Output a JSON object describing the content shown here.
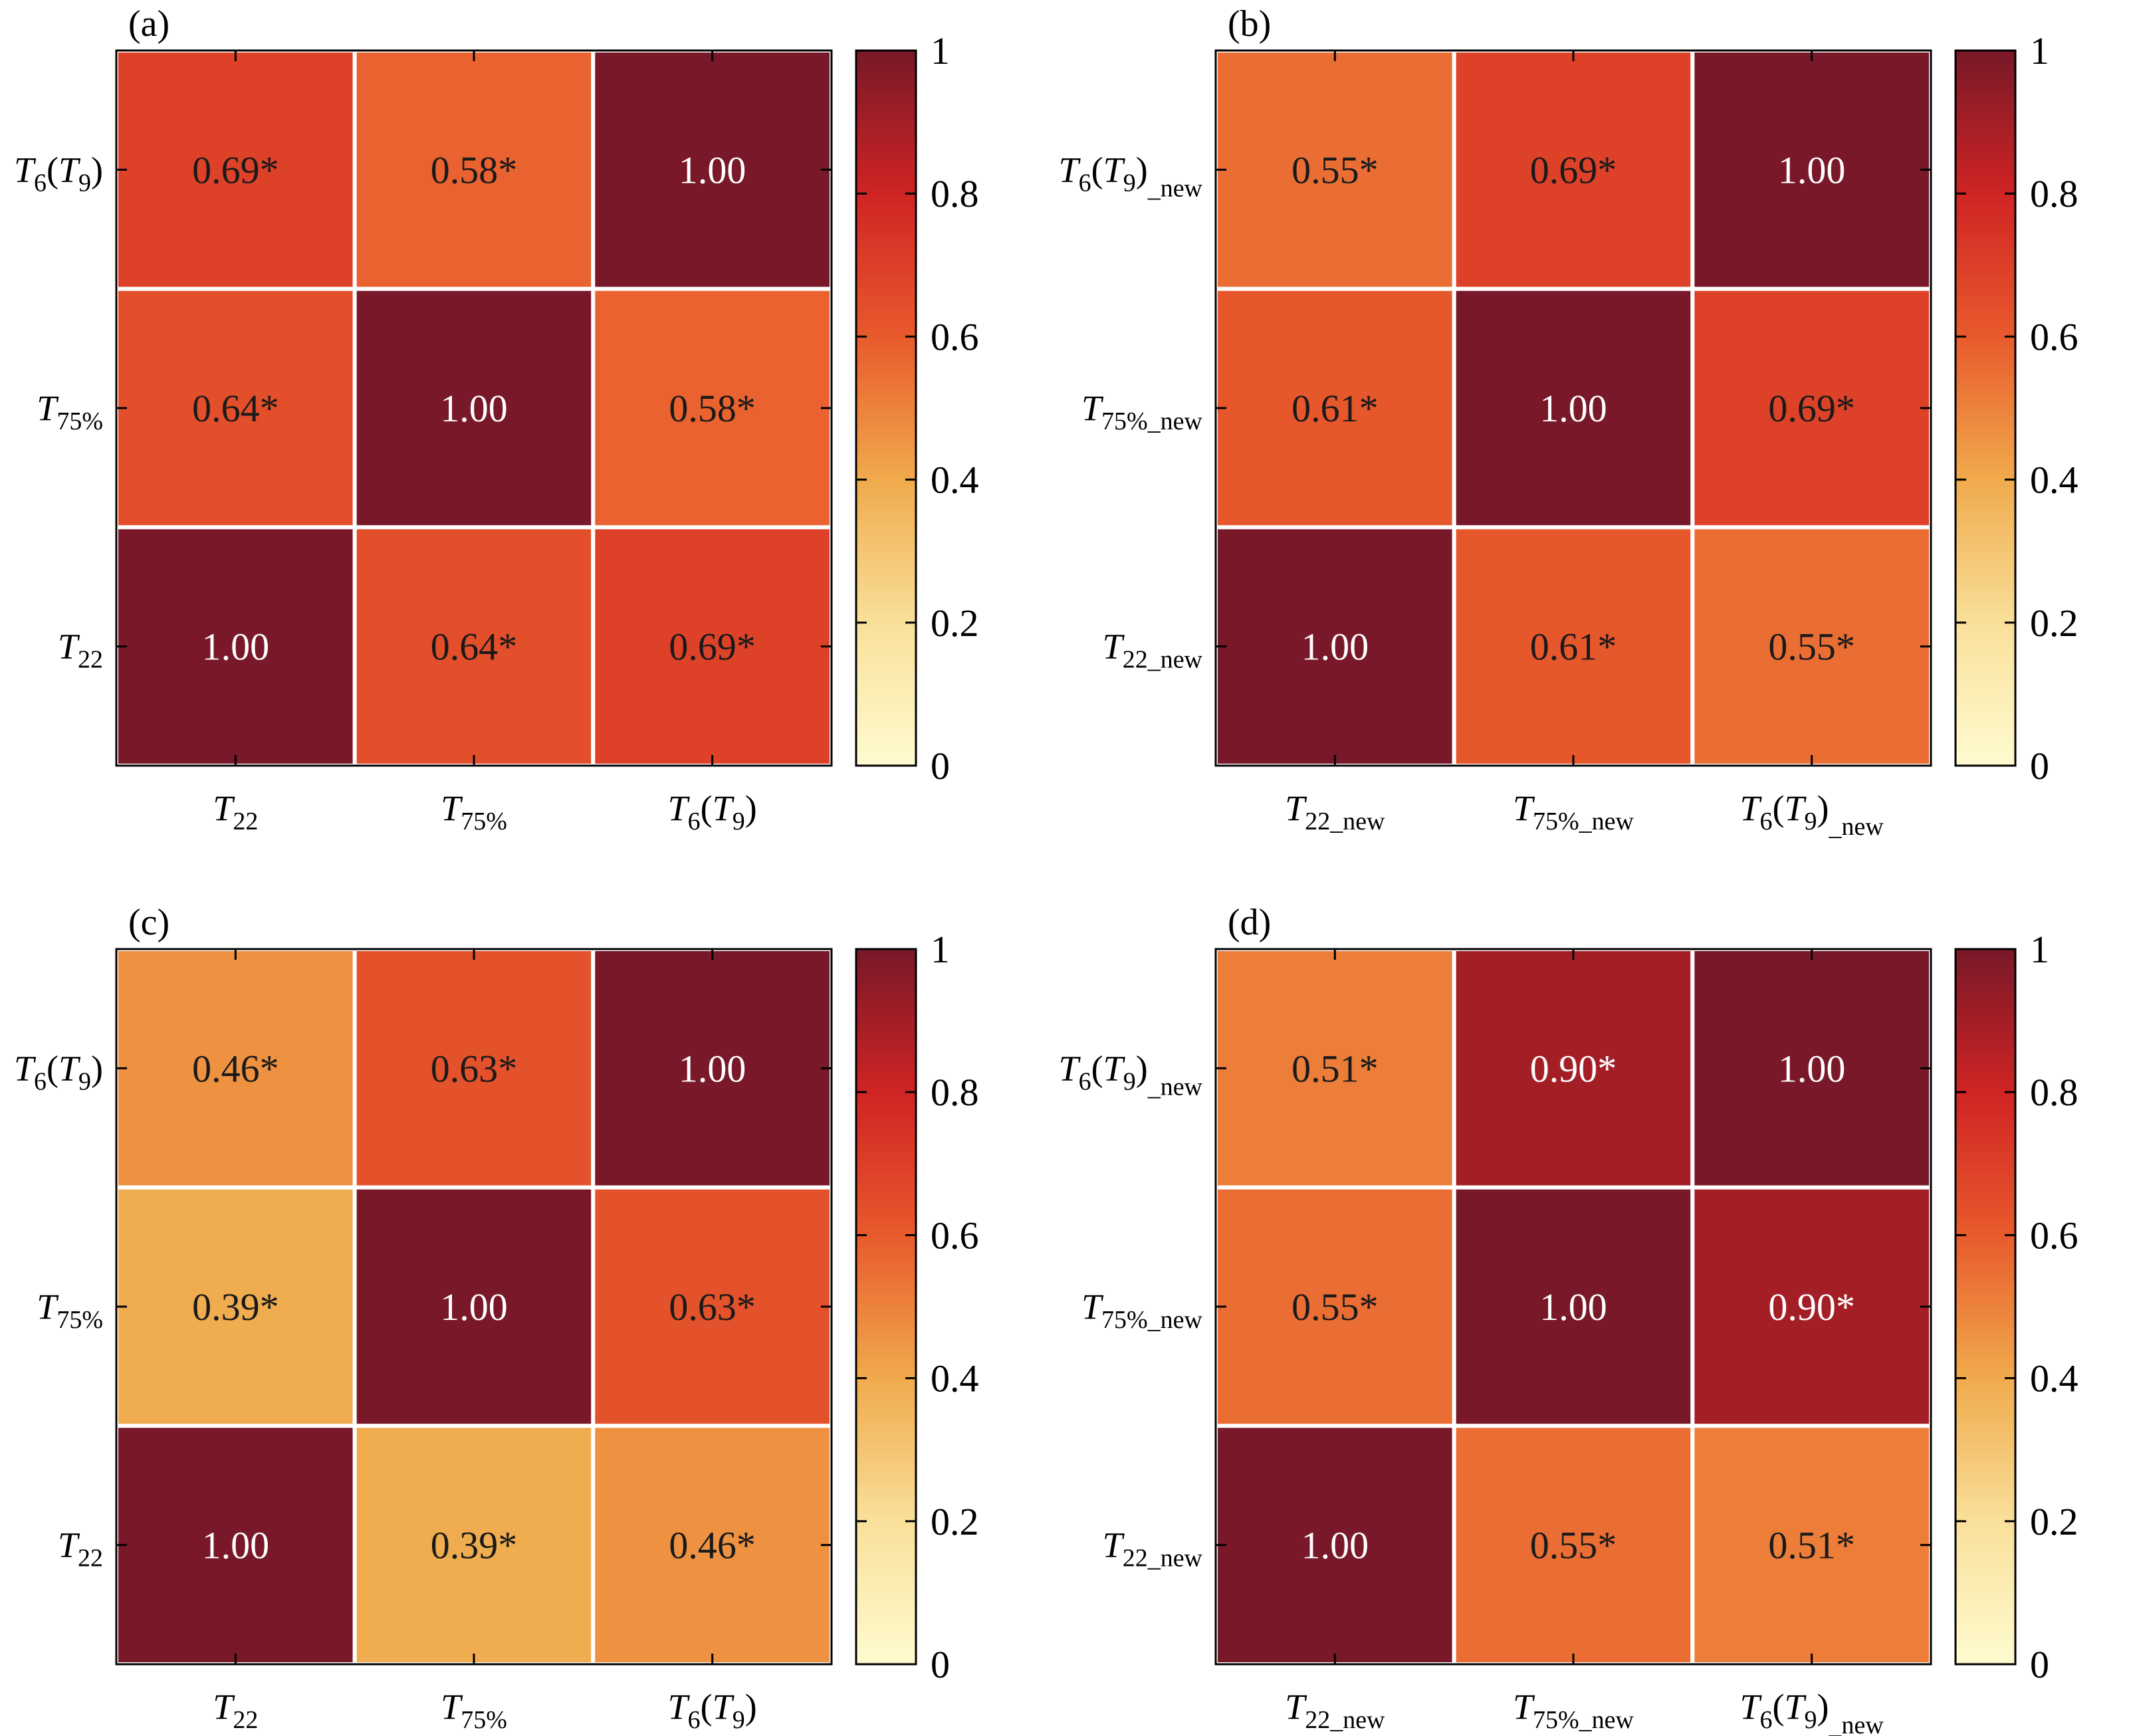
{
  "colorscale": {
    "stops": [
      [
        0.0,
        "#fffbd0"
      ],
      [
        0.2,
        "#f9e09a"
      ],
      [
        0.4,
        "#f0aa4c"
      ],
      [
        0.6,
        "#e85a2c"
      ],
      [
        0.8,
        "#cf2424"
      ],
      [
        1.0,
        "#781828"
      ]
    ],
    "light_text": "#ffffff",
    "dark_text": "#1a1a1a"
  },
  "chart_data": [
    {
      "type": "heatmap",
      "panel_label": "(a)",
      "x_labels": [
        {
          "main": "T",
          "sub": "22",
          "tail": ""
        },
        {
          "main": "T",
          "sub": "75%",
          "tail": ""
        },
        {
          "main": "T",
          "sub": "6",
          "tail": "(T9)"
        }
      ],
      "y_labels": [
        {
          "main": "T",
          "sub": "6",
          "tail": "(T9)"
        },
        {
          "main": "T",
          "sub": "75%",
          "tail": ""
        },
        {
          "main": "T",
          "sub": "22",
          "tail": ""
        }
      ],
      "values": [
        [
          0.69,
          0.58,
          1.0
        ],
        [
          0.64,
          1.0,
          0.58
        ],
        [
          1.0,
          0.64,
          0.69
        ]
      ],
      "cell_text": [
        [
          "0.69*",
          "0.58*",
          "1.00"
        ],
        [
          "0.64*",
          "1.00",
          "0.58*"
        ],
        [
          "1.00",
          "0.64*",
          "0.69*"
        ]
      ],
      "colorbar": {
        "range": [
          0,
          1
        ],
        "ticks": [
          "0",
          "0.2",
          "0.4",
          "0.6",
          "0.8",
          "1"
        ]
      }
    },
    {
      "type": "heatmap",
      "panel_label": "(b)",
      "x_labels": [
        {
          "main": "T",
          "sub": "22_new",
          "tail": ""
        },
        {
          "main": "T",
          "sub": "75%_new",
          "tail": ""
        },
        {
          "main": "T",
          "sub": "6",
          "tail": "(T9)_new"
        }
      ],
      "y_labels": [
        {
          "main": "T",
          "sub": "6",
          "tail": "(T9)_new"
        },
        {
          "main": "T",
          "sub": "75%_new",
          "tail": ""
        },
        {
          "main": "T",
          "sub": "22_new",
          "tail": ""
        }
      ],
      "values": [
        [
          0.55,
          0.69,
          1.0
        ],
        [
          0.61,
          1.0,
          0.69
        ],
        [
          1.0,
          0.61,
          0.55
        ]
      ],
      "cell_text": [
        [
          "0.55*",
          "0.69*",
          "1.00"
        ],
        [
          "0.61*",
          "1.00",
          "0.69*"
        ],
        [
          "1.00",
          "0.61*",
          "0.55*"
        ]
      ],
      "colorbar": {
        "range": [
          0,
          1
        ],
        "ticks": [
          "0",
          "0.2",
          "0.4",
          "0.6",
          "0.8",
          "1"
        ]
      }
    },
    {
      "type": "heatmap",
      "panel_label": "(c)",
      "x_labels": [
        {
          "main": "T",
          "sub": "22",
          "tail": ""
        },
        {
          "main": "T",
          "sub": "75%",
          "tail": ""
        },
        {
          "main": "T",
          "sub": "6",
          "tail": "(T9)"
        }
      ],
      "y_labels": [
        {
          "main": "T",
          "sub": "6",
          "tail": "(T9)"
        },
        {
          "main": "T",
          "sub": "75%",
          "tail": ""
        },
        {
          "main": "T",
          "sub": "22",
          "tail": ""
        }
      ],
      "values": [
        [
          0.46,
          0.63,
          1.0
        ],
        [
          0.39,
          1.0,
          0.63
        ],
        [
          1.0,
          0.39,
          0.46
        ]
      ],
      "cell_text": [
        [
          "0.46*",
          "0.63*",
          "1.00"
        ],
        [
          "0.39*",
          "1.00",
          "0.63*"
        ],
        [
          "1.00",
          "0.39*",
          "0.46*"
        ]
      ],
      "colorbar": {
        "range": [
          0,
          1
        ],
        "ticks": [
          "0",
          "0.2",
          "0.4",
          "0.6",
          "0.8",
          "1"
        ]
      }
    },
    {
      "type": "heatmap",
      "panel_label": "(d)",
      "x_labels": [
        {
          "main": "T",
          "sub": "22_new",
          "tail": ""
        },
        {
          "main": "T",
          "sub": "75%_new",
          "tail": ""
        },
        {
          "main": "T",
          "sub": "6",
          "tail": "(T9)_new"
        }
      ],
      "y_labels": [
        {
          "main": "T",
          "sub": "6",
          "tail": "(T9)_new"
        },
        {
          "main": "T",
          "sub": "75%_new",
          "tail": ""
        },
        {
          "main": "T",
          "sub": "22_new",
          "tail": ""
        }
      ],
      "values": [
        [
          0.51,
          0.9,
          1.0
        ],
        [
          0.55,
          1.0,
          0.9
        ],
        [
          1.0,
          0.55,
          0.51
        ]
      ],
      "cell_text": [
        [
          "0.51*",
          "0.90*",
          "1.00"
        ],
        [
          "0.55*",
          "1.00",
          "0.90*"
        ],
        [
          "1.00",
          "0.55*",
          "0.51*"
        ]
      ],
      "colorbar": {
        "range": [
          0,
          1
        ],
        "ticks": [
          "0",
          "0.2",
          "0.4",
          "0.6",
          "0.8",
          "1"
        ]
      }
    }
  ]
}
